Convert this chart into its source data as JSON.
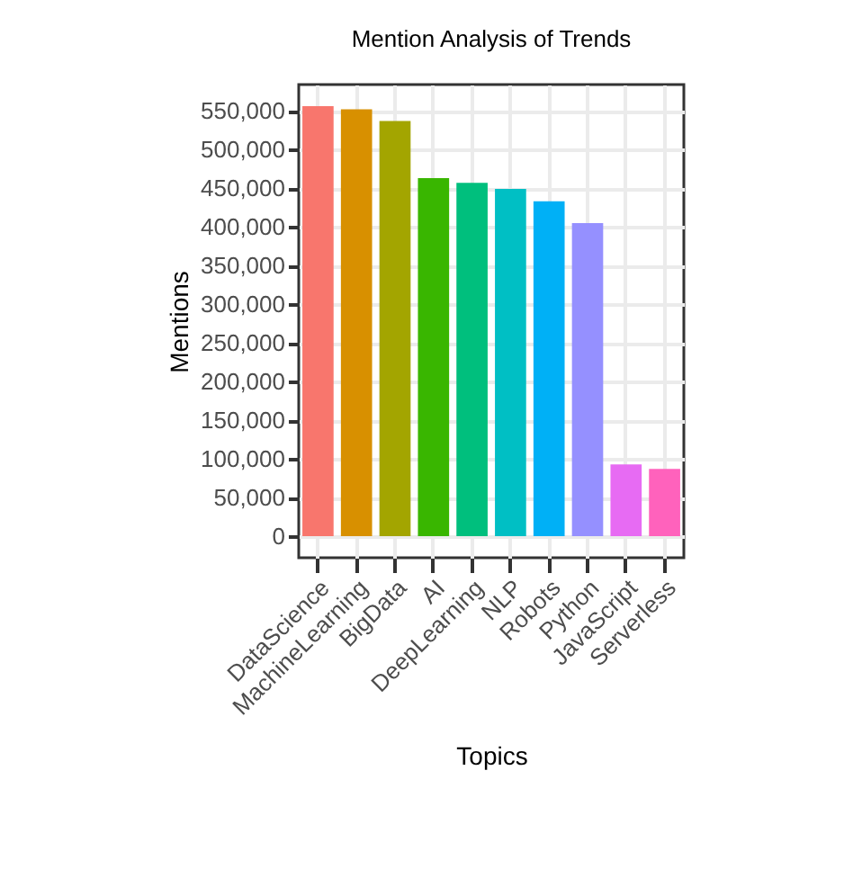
{
  "chart_data": {
    "type": "bar",
    "title": "Mention Analysis of Trends",
    "xlabel": "Topics",
    "ylabel": "Mentions",
    "categories": [
      "DataScience",
      "MachineLearning",
      "BigData",
      "AI",
      "DeepLearning",
      "NLP",
      "Robots",
      "Python",
      "JavaScript",
      "Serverless"
    ],
    "values": [
      556000,
      552000,
      537000,
      463000,
      457000,
      449000,
      433000,
      405000,
      93000,
      87000
    ],
    "colors": [
      "#f8766d",
      "#d89000",
      "#a3a500",
      "#39b600",
      "#00bf7d",
      "#00bfc4",
      "#00b0f6",
      "#9590ff",
      "#e76bf3",
      "#ff62bc"
    ],
    "ylim": [
      -27800,
      584000
    ],
    "yticks": [
      0,
      {
        "value": 50000,
        "label": "50,000"
      },
      {
        "value": 100000,
        "label": "100,000"
      },
      {
        "value": 150000,
        "label": "150,000"
      },
      {
        "value": 200000,
        "label": "200,000"
      },
      {
        "value": 250000,
        "label": "250,000"
      },
      {
        "value": 300000,
        "label": "300,000"
      },
      {
        "value": 350000,
        "label": "350,000"
      },
      {
        "value": 400000,
        "label": "400,000"
      },
      {
        "value": 450000,
        "label": "450,000"
      },
      {
        "value": 500000,
        "label": "500,000"
      },
      {
        "value": 550000,
        "label": "550,000"
      }
    ],
    "grid": true,
    "legend": false
  }
}
